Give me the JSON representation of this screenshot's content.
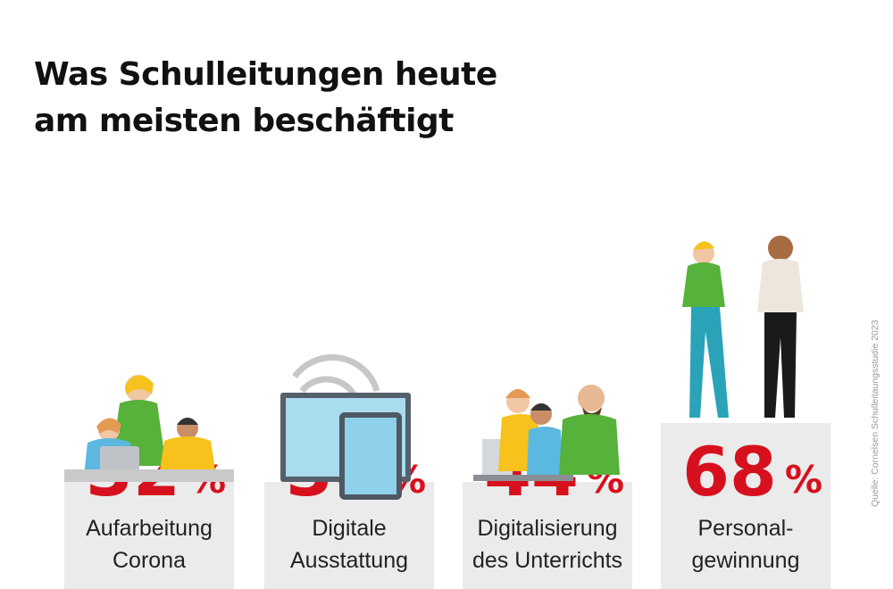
{
  "title_line1": "Was Schulleitungen heute",
  "title_line2": "am meisten beschäftigt",
  "source": "Quelle: Cornelsen Schulleitaungsstudie 2023",
  "colors": {
    "accent": "#d7101d",
    "box": "#ebebeb",
    "text": "#222222"
  },
  "chart_data": {
    "type": "bar",
    "title": "Was Schulleitungen heute am meisten beschäftigt",
    "unit": "%",
    "categories": [
      [
        "Aufarbeitung",
        "Corona"
      ],
      [
        "Digitale",
        "Ausstattung"
      ],
      [
        "Digitalisierung",
        "des Unterrichts"
      ],
      [
        "Personal-",
        "gewinnung"
      ]
    ],
    "values": [
      32,
      36,
      44,
      68
    ],
    "icons": [
      "students-with-laptop-illustration",
      "tablet-wifi-illustration",
      "team-at-laptop-illustration",
      "two-people-standing-illustration"
    ]
  }
}
